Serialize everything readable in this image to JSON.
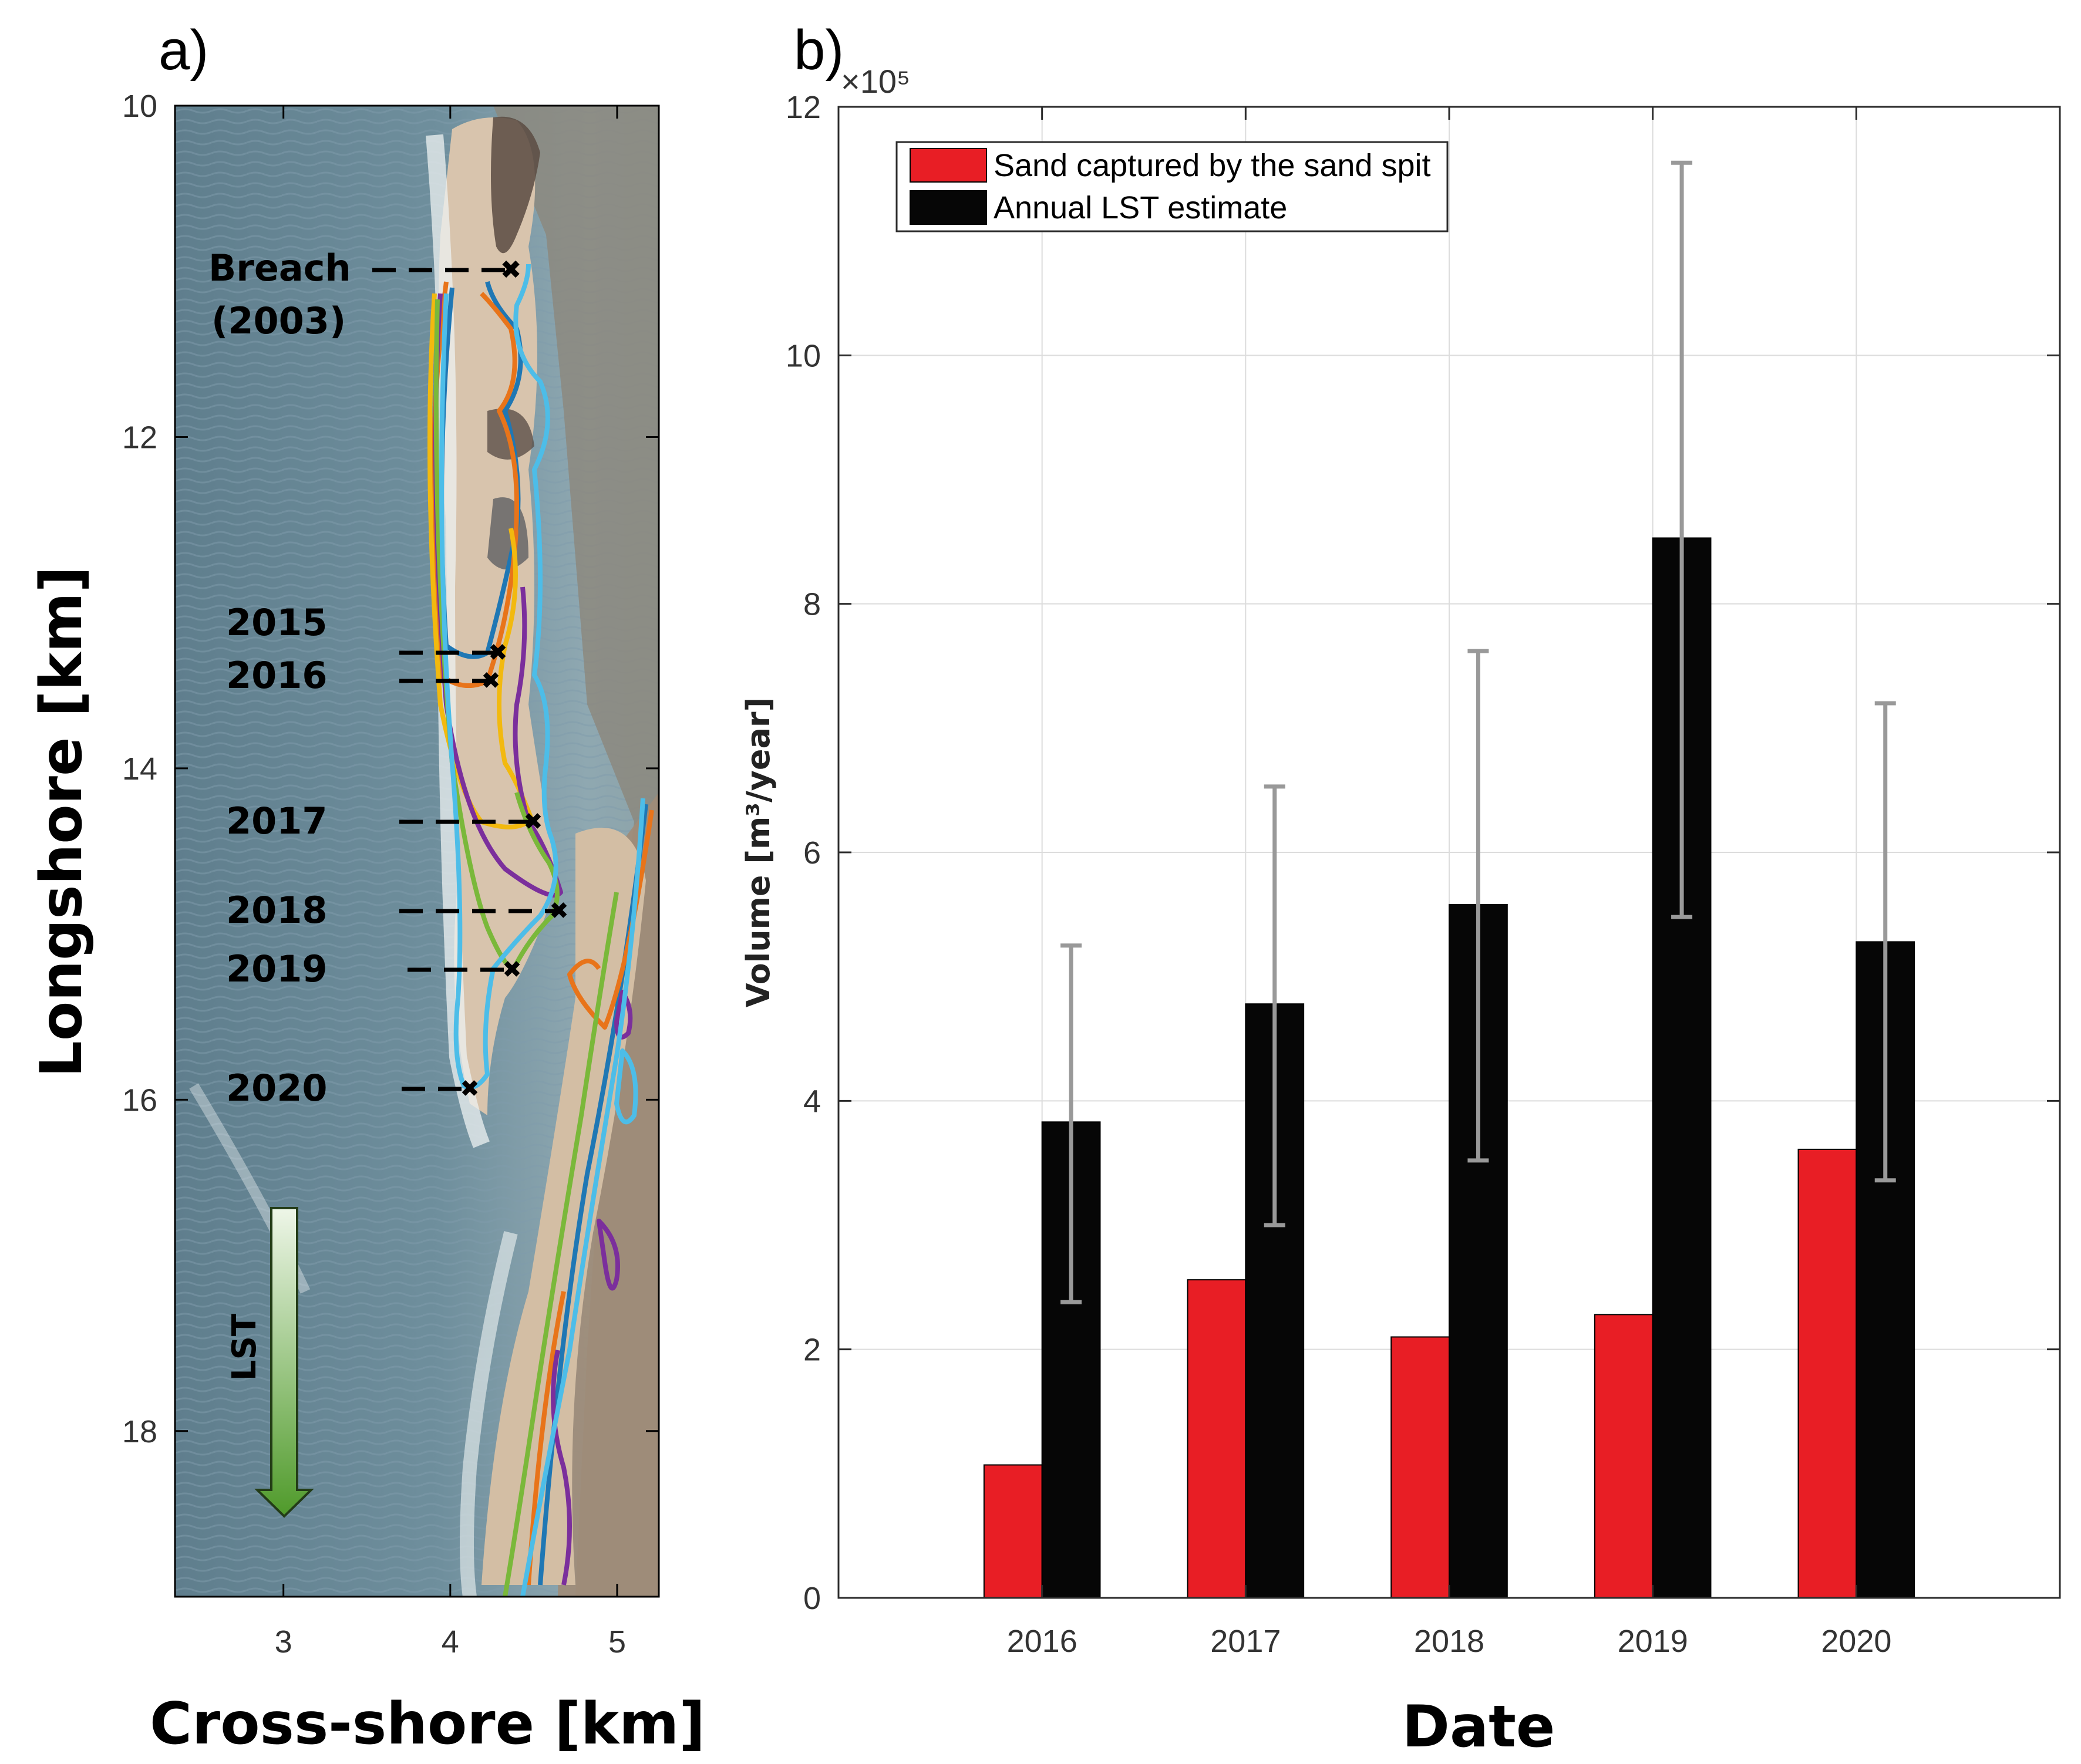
{
  "colors": {
    "sand_captured": "#e81e25",
    "lst_estimate": "#060606",
    "error_bar": "#999999",
    "grid": "#dcdcdc",
    "lst_arrow_top": "#eef6e8",
    "lst_arrow_bottom": "#4f9a2a",
    "shoreline_2015": "#1f77b4",
    "shoreline_2016": "#e8741a",
    "shoreline_2017": "#f2b90f",
    "shoreline_2018": "#7b2f9c",
    "shoreline_2019": "#7ab83a",
    "shoreline_2020": "#4dbde8",
    "water": "#6b8a98",
    "sand": "#d8c4ad",
    "vegetation": "#7a6e63"
  },
  "panel_a": {
    "label": "a)",
    "title": "",
    "xlabel": "Cross-shore [km]",
    "ylabel": "Longshore [km]",
    "x_ticks": [
      "3",
      "4",
      "5"
    ],
    "y_ticks": [
      "10",
      "12",
      "14",
      "16",
      "18"
    ],
    "xlim": [
      2.35,
      5.25
    ],
    "ylim": [
      10,
      19
    ],
    "breach": {
      "label_line1": "Breach",
      "label_line2": "(2003)"
    },
    "marker_years": [
      "2015",
      "2016",
      "2017",
      "2018",
      "2019",
      "2020"
    ],
    "arrow_label": "LST"
  },
  "chart_data": {
    "type": "bar",
    "label": "b)",
    "title": "",
    "xlabel": "Date",
    "ylabel": "Volume [m³/year]",
    "y_exponent": "×10⁵",
    "categories": [
      "2016",
      "2017",
      "2018",
      "2019",
      "2020"
    ],
    "y_ticks": [
      "0",
      "2",
      "4",
      "6",
      "8",
      "10",
      "12"
    ],
    "ylim": [
      0,
      12
    ],
    "xlim": [
      0,
      6
    ],
    "grid": true,
    "legend_position": "top-left",
    "series": [
      {
        "name": "Sand captured by the sand spit",
        "values": [
          1.07,
          2.56,
          2.1,
          2.28,
          3.61
        ]
      },
      {
        "name": "Annual LST estimate",
        "values": [
          3.83,
          4.78,
          5.58,
          8.53,
          5.28
        ],
        "error_low": [
          2.38,
          3.0,
          3.52,
          5.48,
          3.36
        ],
        "error_high": [
          5.25,
          6.53,
          7.62,
          11.55,
          7.2
        ]
      }
    ]
  }
}
